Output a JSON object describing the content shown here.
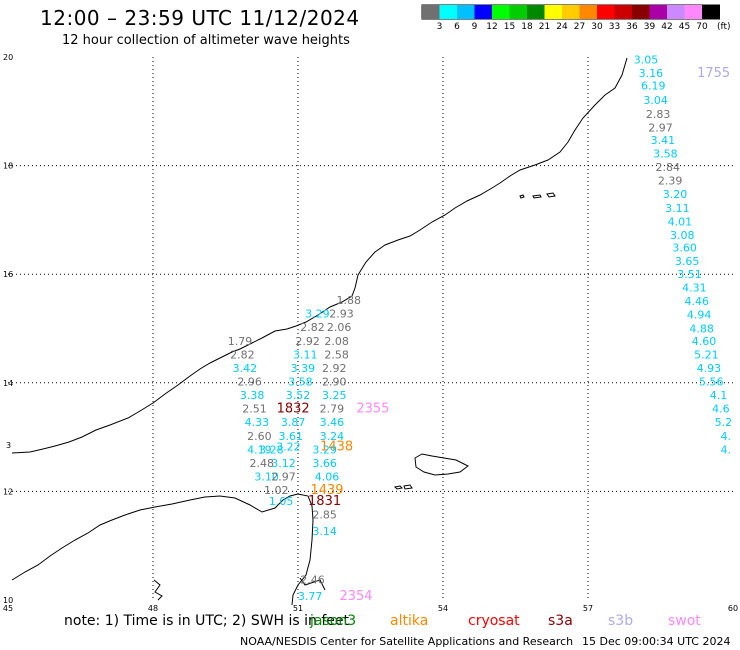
{
  "header": {
    "title": "12:00 – 23:59 UTC 11/12/2024",
    "subtitle": "12 hour collection of altimeter wave heights"
  },
  "colorbar": {
    "colors": [
      "#707070",
      "#00ffff",
      "#00c0ff",
      "#0000ff",
      "#00ff00",
      "#00cc00",
      "#008800",
      "#ffff00",
      "#ffcc00",
      "#ff8800",
      "#ff0000",
      "#cc0000",
      "#880000",
      "#aa00aa",
      "#cc88ff",
      "#ff88ff",
      "#000000"
    ],
    "labels": [
      "3",
      "6",
      "9",
      "12",
      "15",
      "18",
      "21",
      "24",
      "27",
      "30",
      "33",
      "36",
      "39",
      "42",
      "45",
      "70"
    ],
    "unit": "(ft)"
  },
  "axes": {
    "x_ticks": [
      "45",
      "48",
      "51",
      "54",
      "57",
      "60"
    ],
    "y_ticks": [
      "20",
      "18",
      "16",
      "14",
      "12",
      "10"
    ],
    "y_side_label": "3"
  },
  "wave_labels": [
    {
      "text": "3.05",
      "color": "#00ccff",
      "lon": 58.2,
      "lat": 19.88
    },
    {
      "text": "3.16",
      "color": "#00ccff",
      "lon": 58.3,
      "lat": 19.63
    },
    {
      "text": "1755",
      "color": "#aaaaee",
      "lon": 59.6,
      "lat": 19.63
    },
    {
      "text": "6.19",
      "color": "#00ccff",
      "lon": 58.35,
      "lat": 19.4
    },
    {
      "text": "3.04",
      "color": "#00ccff",
      "lon": 58.4,
      "lat": 19.13
    },
    {
      "text": "2.83",
      "color": "#707070",
      "lon": 58.45,
      "lat": 18.88
    },
    {
      "text": "2.97",
      "color": "#707070",
      "lon": 58.5,
      "lat": 18.63
    },
    {
      "text": "3.41",
      "color": "#00ccff",
      "lon": 58.55,
      "lat": 18.4
    },
    {
      "text": "3.58",
      "color": "#00ccff",
      "lon": 58.6,
      "lat": 18.15
    },
    {
      "text": "2.84",
      "color": "#707070",
      "lon": 58.65,
      "lat": 17.9
    },
    {
      "text": "2.39",
      "color": "#707070",
      "lon": 58.7,
      "lat": 17.65
    },
    {
      "text": "3.20",
      "color": "#00ccff",
      "lon": 58.8,
      "lat": 17.4
    },
    {
      "text": "3.11",
      "color": "#00ccff",
      "lon": 58.85,
      "lat": 17.15
    },
    {
      "text": "4.01",
      "color": "#00ccff",
      "lon": 58.9,
      "lat": 16.9
    },
    {
      "text": "3.08",
      "color": "#00ccff",
      "lon": 58.95,
      "lat": 16.65
    },
    {
      "text": "3.60",
      "color": "#00ccff",
      "lon": 59.0,
      "lat": 16.42
    },
    {
      "text": "3.65",
      "color": "#00ccff",
      "lon": 59.05,
      "lat": 16.17
    },
    {
      "text": "3.51",
      "color": "#00ccff",
      "lon": 59.1,
      "lat": 15.93
    },
    {
      "text": "4.31",
      "color": "#00ccff",
      "lon": 59.2,
      "lat": 15.68
    },
    {
      "text": "4.46",
      "color": "#00ccff",
      "lon": 59.25,
      "lat": 15.43
    },
    {
      "text": "4.94",
      "color": "#00ccff",
      "lon": 59.3,
      "lat": 15.18
    },
    {
      "text": "4.88",
      "color": "#00ccff",
      "lon": 59.35,
      "lat": 14.93
    },
    {
      "text": "4.60",
      "color": "#00ccff",
      "lon": 59.4,
      "lat": 14.7
    },
    {
      "text": "5.21",
      "color": "#00ccff",
      "lon": 59.45,
      "lat": 14.45
    },
    {
      "text": "4.93",
      "color": "#00ccff",
      "lon": 59.5,
      "lat": 14.2
    },
    {
      "text": "5.56",
      "color": "#00ccff",
      "lon": 59.55,
      "lat": 13.95
    },
    {
      "text": "4.1",
      "color": "#00ccff",
      "lon": 59.7,
      "lat": 13.7
    },
    {
      "text": "4.6",
      "color": "#00ccff",
      "lon": 59.75,
      "lat": 13.45
    },
    {
      "text": "5.2",
      "color": "#00ccff",
      "lon": 59.8,
      "lat": 13.2
    },
    {
      "text": "4.",
      "color": "#00ccff",
      "lon": 59.85,
      "lat": 12.95
    },
    {
      "text": "4.",
      "color": "#00ccff",
      "lon": 59.85,
      "lat": 12.7
    },
    {
      "text": "1.88",
      "color": "#707070",
      "lon": 52.05,
      "lat": 15.45
    },
    {
      "text": "3.29",
      "color": "#00ccff",
      "lon": 51.4,
      "lat": 15.2
    },
    {
      "text": "2.93",
      "color": "#707070",
      "lon": 51.9,
      "lat": 15.2
    },
    {
      "text": "2.82",
      "color": "#707070",
      "lon": 51.3,
      "lat": 14.95
    },
    {
      "text": "2.06",
      "color": "#707070",
      "lon": 51.85,
      "lat": 14.95
    },
    {
      "text": "2.92",
      "color": "#707070",
      "lon": 51.2,
      "lat": 14.7
    },
    {
      "text": "2.08",
      "color": "#707070",
      "lon": 51.8,
      "lat": 14.7
    },
    {
      "text": "1.79",
      "color": "#707070",
      "lon": 49.8,
      "lat": 14.7
    },
    {
      "text": "3.11",
      "color": "#00ccff",
      "lon": 51.15,
      "lat": 14.45
    },
    {
      "text": "2.58",
      "color": "#707070",
      "lon": 51.8,
      "lat": 14.45
    },
    {
      "text": "2.82",
      "color": "#707070",
      "lon": 49.85,
      "lat": 14.45
    },
    {
      "text": "3.39",
      "color": "#00ccff",
      "lon": 51.1,
      "lat": 14.2
    },
    {
      "text": "2.92",
      "color": "#707070",
      "lon": 51.75,
      "lat": 14.2
    },
    {
      "text": "3.42",
      "color": "#00ccff",
      "lon": 49.9,
      "lat": 14.2
    },
    {
      "text": "3.58",
      "color": "#00ccff",
      "lon": 51.05,
      "lat": 13.95
    },
    {
      "text": "2.90",
      "color": "#707070",
      "lon": 51.75,
      "lat": 13.95
    },
    {
      "text": "2.96",
      "color": "#707070",
      "lon": 50.0,
      "lat": 13.95
    },
    {
      "text": "3.52",
      "color": "#00ccff",
      "lon": 51.0,
      "lat": 13.7
    },
    {
      "text": "3.25",
      "color": "#00ccff",
      "lon": 51.75,
      "lat": 13.7
    },
    {
      "text": "3.38",
      "color": "#00ccff",
      "lon": 50.05,
      "lat": 13.7
    },
    {
      "text": "1832",
      "color": "#880000",
      "lon": 50.9,
      "lat": 13.45
    },
    {
      "text": "2.79",
      "color": "#707070",
      "lon": 51.7,
      "lat": 13.45
    },
    {
      "text": "2355",
      "color": "#ff88ff",
      "lon": 52.55,
      "lat": 13.45
    },
    {
      "text": "2.51",
      "color": "#707070",
      "lon": 50.1,
      "lat": 13.45
    },
    {
      "text": "3.87",
      "color": "#00ccff",
      "lon": 50.9,
      "lat": 13.2
    },
    {
      "text": "3.46",
      "color": "#00ccff",
      "lon": 51.7,
      "lat": 13.2
    },
    {
      "text": "4.33",
      "color": "#00ccff",
      "lon": 50.15,
      "lat": 13.2
    },
    {
      "text": "3.61",
      "color": "#00ccff",
      "lon": 50.85,
      "lat": 12.95
    },
    {
      "text": "3.24",
      "color": "#00ccff",
      "lon": 51.7,
      "lat": 12.95
    },
    {
      "text": "2.60",
      "color": "#707070",
      "lon": 50.2,
      "lat": 12.95
    },
    {
      "text": "3.22",
      "color": "#00ccff",
      "lon": 50.8,
      "lat": 12.75
    },
    {
      "text": "1438",
      "color": "#ff8800",
      "lon": 51.8,
      "lat": 12.75
    },
    {
      "text": "4.19",
      "color": "#00ccff",
      "lon": 50.2,
      "lat": 12.7
    },
    {
      "text": "3.28",
      "color": "#00ccff",
      "lon": 50.45,
      "lat": 12.7
    },
    {
      "text": "3.29",
      "color": "#00ccff",
      "lon": 51.55,
      "lat": 12.7
    },
    {
      "text": "2.48",
      "color": "#707070",
      "lon": 50.25,
      "lat": 12.45
    },
    {
      "text": "3.12",
      "color": "#00ccff",
      "lon": 50.7,
      "lat": 12.45
    },
    {
      "text": "3.66",
      "color": "#00ccff",
      "lon": 51.55,
      "lat": 12.45
    },
    {
      "text": "3.10",
      "color": "#00ccff",
      "lon": 50.35,
      "lat": 12.2
    },
    {
      "text": "2.97",
      "color": "#707070",
      "lon": 50.7,
      "lat": 12.2
    },
    {
      "text": "4.06",
      "color": "#00ccff",
      "lon": 51.6,
      "lat": 12.2
    },
    {
      "text": "1.02",
      "color": "#707070",
      "lon": 50.55,
      "lat": 11.95
    },
    {
      "text": "1439",
      "color": "#ff8800",
      "lon": 51.6,
      "lat": 11.95
    },
    {
      "text": "1831",
      "color": "#880000",
      "lon": 51.55,
      "lat": 11.75
    },
    {
      "text": "1.05",
      "color": "#00ccff",
      "lon": 50.65,
      "lat": 11.75
    },
    {
      "text": "2.85",
      "color": "#707070",
      "lon": 51.55,
      "lat": 11.5
    },
    {
      "text": "3.14",
      "color": "#00ccff",
      "lon": 51.55,
      "lat": 11.2
    },
    {
      "text": "2.46",
      "color": "#707070",
      "lon": 51.3,
      "lat": 10.3
    },
    {
      "text": "3.77",
      "color": "#00ccff",
      "lon": 51.25,
      "lat": 10.0
    },
    {
      "text": "2354",
      "color": "#ff88ff",
      "lon": 52.2,
      "lat": 10.0
    }
  ],
  "note": "note: 1) Time is in UTC; 2) SWH is in feet",
  "satellites": [
    {
      "name": "jason3",
      "color": "#008800"
    },
    {
      "name": "altika",
      "color": "#ff8800"
    },
    {
      "name": "cryosat",
      "color": "#ff0000"
    },
    {
      "name": "s3a",
      "color": "#880000"
    },
    {
      "name": "s3b",
      "color": "#aaaaee"
    },
    {
      "name": "swot",
      "color": "#ff88ff"
    }
  ],
  "footer": {
    "agency": "NOAA/NESDIS Center for Satellite Applications and Research",
    "timestamp": "15 Dec 09:00:34 UTC 2024"
  }
}
